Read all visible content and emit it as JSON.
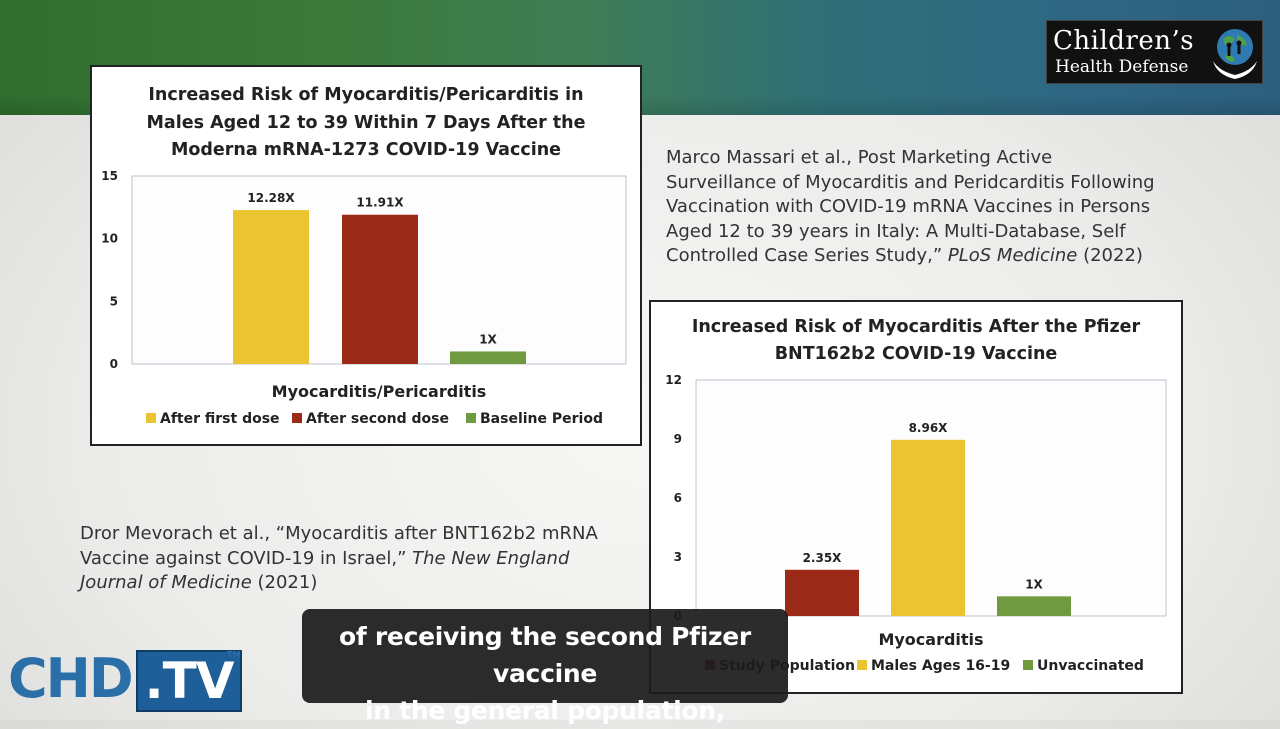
{
  "colors": {
    "yellow": "#ebc531",
    "red": "#9b2a18",
    "green": "#6f9a3f",
    "dark_red": "#7a1a0c"
  },
  "logo": {
    "line1": "Children’s",
    "line2": "Health Defense",
    "icon": "globe-hands-icon"
  },
  "citations": {
    "massari": {
      "lines": [
        "Marco Massari et al., Post Marketing Active",
        "Surveillance of Myocarditis and Peridcarditis Following",
        "Vaccination with COVID-19 mRNA Vaccines in Persons",
        "Aged 12 to 39 years in Italy: A Multi-Database, Self",
        "Controlled Case Series Study,” "
      ],
      "journal": "PLoS Medicine",
      "year": " (2022)"
    },
    "mevorach": {
      "line1": "Dror Mevorach et al., “Myocarditis after BNT162b2 mRNA",
      "line2a": "Vaccine against COVID-19 in Israel,” ",
      "line2b": "The New England",
      "line3a": "Journal of Medicine",
      "line3b": " (2021)"
    }
  },
  "caption": {
    "line1": "of receiving the second Pfizer vaccine",
    "line2": "in the general population,"
  },
  "brand": {
    "chd": "CHD",
    "tv": ".TV",
    "tm": "TM"
  },
  "chart_data": [
    {
      "type": "bar",
      "title_lines": [
        "Increased Risk of Myocarditis/Pericarditis in",
        "Males Aged 12 to 39 Within 7 Days After the",
        "Moderna mRNA-1273 COVID-19 Vaccine"
      ],
      "xlabel": "Myocarditis/Pericarditis",
      "ylim": [
        0,
        15
      ],
      "yticks": [
        0,
        5,
        10,
        15
      ],
      "grid": false,
      "legend_position": "bottom",
      "series": [
        {
          "name": "After first dose",
          "value": 12.28,
          "label": "12.28X",
          "color": "#ebc531"
        },
        {
          "name": "After second dose",
          "value": 11.91,
          "label": "11.91X",
          "color": "#9b2a18"
        },
        {
          "name": "Baseline Period",
          "value": 1,
          "label": "1X",
          "color": "#6f9a3f"
        }
      ]
    },
    {
      "type": "bar",
      "title_lines": [
        "Increased Risk of Myocarditis After the Pfizer",
        "BNT162b2 COVID-19 Vaccine"
      ],
      "xlabel": "Myocarditis",
      "ylim": [
        0,
        12
      ],
      "yticks": [
        0,
        3,
        6,
        9,
        12
      ],
      "grid": false,
      "legend_position": "bottom",
      "series": [
        {
          "name": "Study Population",
          "value": 2.35,
          "label": "2.35X",
          "color": "#9b2a18"
        },
        {
          "name": "Males Ages 16-19",
          "value": 8.96,
          "label": "8.96X",
          "color": "#ebc531"
        },
        {
          "name": "Unvaccinated",
          "value": 1,
          "label": "1X",
          "color": "#6f9a3f"
        }
      ]
    }
  ]
}
